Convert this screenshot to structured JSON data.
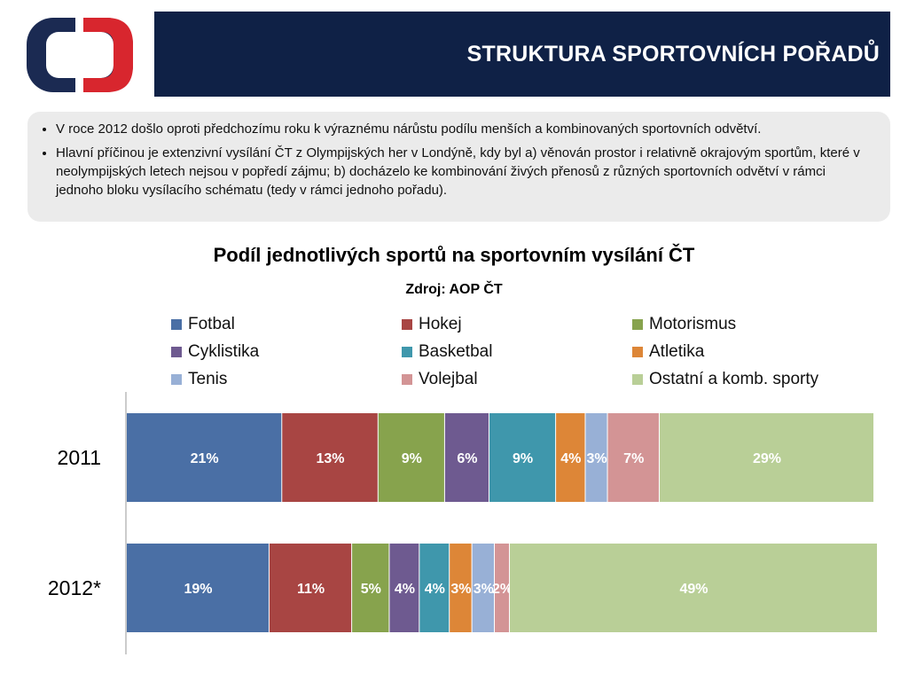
{
  "header": {
    "title": "STRUKTURA SPORTOVNÍCH POŘADŮ",
    "logo": {
      "icon": "ct-logo-icon",
      "colors": {
        "outer": "#1b2a52",
        "inner": "#d8262e"
      }
    },
    "bar_color": "#0f2146"
  },
  "notes": {
    "items": [
      "V roce 2012 došlo oproti předchozímu roku k výraznému nárůstu podílu menších a kombinovaných sportovních odvětví.",
      "Hlavní příčinou je extenzivní vysílání ČT z Olympijských her v Londýně, kdy byl a) věnován prostor i relativně okrajovým sportům, které v neolympijských letech nejsou v popředí zájmu; b) docházelo ke kombinování živých přenosů z různých sportovních odvětví v rámci jednoho bloku vysílacího schématu (tedy v rámci jednoho pořadu)."
    ]
  },
  "chart_data": {
    "type": "bar",
    "orientation": "horizontal",
    "stacked": true,
    "percent_stacked": true,
    "title": "Podíl jednotlivých sportů na sportovním vysílání ČT",
    "subtitle": "Zdroj: AOP ČT",
    "categories": [
      "2011",
      "2012*"
    ],
    "legend_position": "top",
    "grid": false,
    "series": [
      {
        "name": "Fotbal",
        "color": "#4a6fa5",
        "values": [
          21,
          19
        ],
        "labels": [
          "21%",
          "19%"
        ]
      },
      {
        "name": "Hokej",
        "color": "#a84543",
        "values": [
          13,
          11
        ],
        "labels": [
          "13%",
          "11%"
        ]
      },
      {
        "name": "Motorismus",
        "color": "#87a34d",
        "values": [
          9,
          5
        ],
        "labels": [
          "9%",
          "5%"
        ]
      },
      {
        "name": "Cyklistika",
        "color": "#6e5a90",
        "values": [
          6,
          4
        ],
        "labels": [
          "6%",
          "4%"
        ]
      },
      {
        "name": "Basketbal",
        "color": "#3f97ac",
        "values": [
          9,
          4
        ],
        "labels": [
          "9%",
          "4%"
        ]
      },
      {
        "name": "Atletika",
        "color": "#dd8637",
        "values": [
          4,
          3
        ],
        "labels": [
          "4%",
          "3%"
        ]
      },
      {
        "name": "Tenis",
        "color": "#98b0d6",
        "values": [
          3,
          3
        ],
        "labels": [
          "3%",
          "3%"
        ]
      },
      {
        "name": "Volejbal",
        "color": "#d39495",
        "values": [
          7,
          2
        ],
        "labels": [
          "7%",
          "2%"
        ]
      },
      {
        "name": "Ostatní a komb. sporty",
        "color": "#b9cf97",
        "values": [
          29,
          49
        ],
        "labels": [
          "29%",
          "49%"
        ]
      }
    ]
  }
}
